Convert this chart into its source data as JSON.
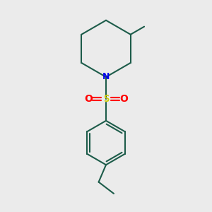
{
  "bg_color": "#ebebeb",
  "bond_color": "#1d5c4a",
  "N_color": "#0000ee",
  "S_color": "#cccc00",
  "O_color": "#ff0000",
  "line_width": 1.5,
  "figsize": [
    3.0,
    3.0
  ],
  "dpi": 100,
  "xlim": [
    0,
    10
  ],
  "ylim": [
    0,
    10
  ]
}
